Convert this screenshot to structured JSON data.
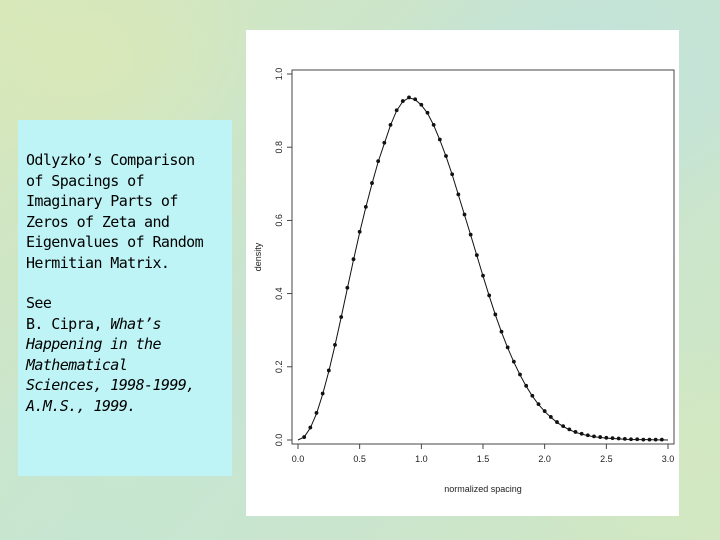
{
  "textbox": {
    "para1": [
      "Odlyzko’s Comparison",
      "of Spacings of",
      "Imaginary Parts of",
      "Zeros of Zeta and",
      "Eigenvalues of Random",
      "Hermitian Matrix."
    ],
    "para2_line1": "See",
    "para2_line2_prefix": "B. Cipra, ",
    "para2_line2_title": "What’s",
    "para2_italic": [
      "Happening in the",
      "Mathematical",
      "Sciences, 1998-1999,",
      "A.M.S., 1999."
    ]
  },
  "chart_data": {
    "type": "line",
    "xlabel": "normalized spacing",
    "ylabel": "density",
    "xlim": [
      0,
      3
    ],
    "ylim": [
      0,
      1
    ],
    "xticks": [
      "0.0",
      "0.5",
      "1.0",
      "1.5",
      "2.0",
      "2.5",
      "3.0"
    ],
    "yticks": [
      "0.0",
      "0.2",
      "0.4",
      "0.6",
      "0.8",
      "1.0"
    ],
    "series": [
      {
        "style": "line",
        "x": [
          0.0,
          0.05,
          0.1,
          0.15,
          0.2,
          0.25,
          0.3,
          0.35,
          0.4,
          0.45,
          0.5,
          0.55,
          0.6,
          0.65,
          0.7,
          0.75,
          0.8,
          0.85,
          0.9,
          0.95,
          1.0,
          1.05,
          1.1,
          1.15,
          1.2,
          1.25,
          1.3,
          1.35,
          1.4,
          1.45,
          1.5,
          1.55,
          1.6,
          1.65,
          1.7,
          1.75,
          1.8,
          1.85,
          1.9,
          1.95,
          2.0,
          2.05,
          2.1,
          2.15,
          2.2,
          2.25,
          2.3,
          2.35,
          2.4,
          2.45,
          2.5,
          2.55,
          2.6,
          2.65,
          2.7,
          2.75,
          2.8,
          2.85,
          2.9,
          2.95,
          3.0
        ],
        "y": [
          0.0,
          0.008,
          0.033,
          0.072,
          0.125,
          0.188,
          0.259,
          0.335,
          0.414,
          0.492,
          0.567,
          0.636,
          0.7,
          0.76,
          0.81,
          0.86,
          0.9,
          0.925,
          0.935,
          0.93,
          0.915,
          0.893,
          0.86,
          0.82,
          0.775,
          0.725,
          0.67,
          0.615,
          0.56,
          0.504,
          0.448,
          0.394,
          0.342,
          0.295,
          0.252,
          0.213,
          0.178,
          0.147,
          0.12,
          0.097,
          0.078,
          0.062,
          0.048,
          0.037,
          0.028,
          0.021,
          0.016,
          0.012,
          0.009,
          0.007,
          0.005,
          0.004,
          0.003,
          0.002,
          0.0015,
          0.001,
          0.001,
          0.001,
          0.0005,
          0.0005,
          0.0
        ]
      },
      {
        "style": "points",
        "x": [
          0.05,
          0.1,
          0.15,
          0.2,
          0.25,
          0.3,
          0.35,
          0.4,
          0.45,
          0.5,
          0.55,
          0.6,
          0.65,
          0.7,
          0.75,
          0.8,
          0.85,
          0.9,
          0.95,
          1.0,
          1.05,
          1.1,
          1.15,
          1.2,
          1.25,
          1.3,
          1.35,
          1.4,
          1.45,
          1.5,
          1.55,
          1.6,
          1.65,
          1.7,
          1.75,
          1.8,
          1.85,
          1.9,
          1.95,
          2.0,
          2.05,
          2.1,
          2.15,
          2.2,
          2.25,
          2.3,
          2.35,
          2.4,
          2.45,
          2.5,
          2.55,
          2.6,
          2.65,
          2.7,
          2.75,
          2.8,
          2.85,
          2.9,
          2.95
        ],
        "y": [
          0.008,
          0.034,
          0.074,
          0.127,
          0.19,
          0.26,
          0.336,
          0.416,
          0.494,
          0.569,
          0.637,
          0.702,
          0.762,
          0.812,
          0.861,
          0.901,
          0.926,
          0.936,
          0.931,
          0.916,
          0.894,
          0.861,
          0.821,
          0.776,
          0.726,
          0.671,
          0.616,
          0.561,
          0.505,
          0.449,
          0.395,
          0.343,
          0.296,
          0.253,
          0.214,
          0.179,
          0.148,
          0.121,
          0.098,
          0.079,
          0.063,
          0.049,
          0.038,
          0.029,
          0.022,
          0.017,
          0.013,
          0.01,
          0.008,
          0.006,
          0.005,
          0.004,
          0.003,
          0.002,
          0.002,
          0.001,
          0.001,
          0.001,
          0.001
        ]
      }
    ]
  }
}
